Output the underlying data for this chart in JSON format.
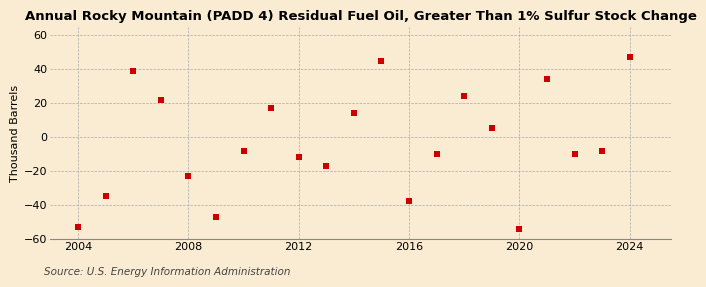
{
  "title": "Annual Rocky Mountain (PADD 4) Residual Fuel Oil, Greater Than 1% Sulfur Stock Change",
  "ylabel": "Thousand Barrels",
  "source": "Source: U.S. Energy Information Administration",
  "background_color": "#faecd2",
  "dot_color": "#cc0000",
  "years": [
    2004,
    2005,
    2006,
    2007,
    2008,
    2009,
    2010,
    2011,
    2012,
    2013,
    2014,
    2015,
    2016,
    2017,
    2018,
    2019,
    2020,
    2021,
    2022,
    2023,
    2024
  ],
  "values": [
    -53,
    -35,
    39,
    22,
    -23,
    -47,
    -8,
    17,
    -12,
    -17,
    14,
    45,
    -38,
    -10,
    24,
    5,
    -54,
    34,
    -10,
    -8,
    47
  ],
  "xlim": [
    2003.0,
    2025.5
  ],
  "ylim": [
    -60,
    65
  ],
  "yticks": [
    -60,
    -40,
    -20,
    0,
    20,
    40,
    60
  ],
  "xticks": [
    2004,
    2008,
    2012,
    2016,
    2020,
    2024
  ],
  "grid_color": "#aaaaaa",
  "title_fontsize": 9.5,
  "ylabel_fontsize": 8,
  "tick_fontsize": 8,
  "source_fontsize": 7.5,
  "marker_size": 15
}
